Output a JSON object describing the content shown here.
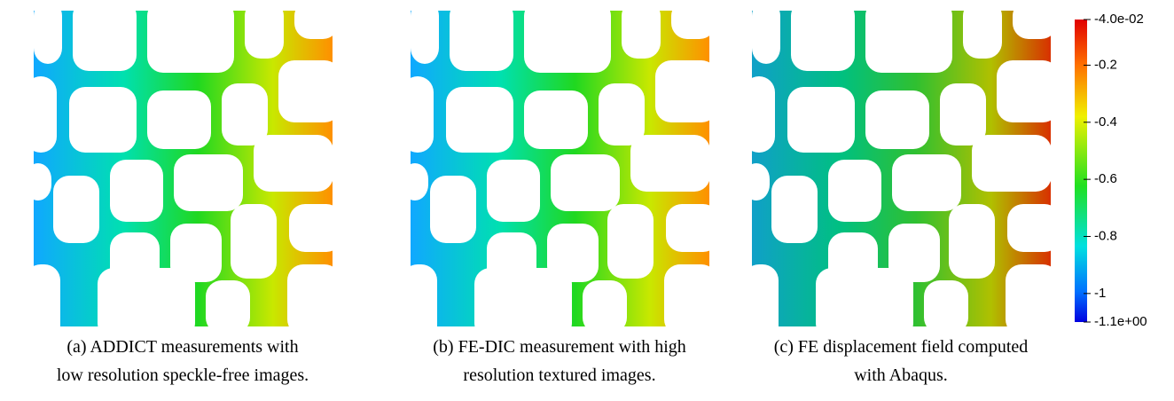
{
  "figures": [
    {
      "caption": [
        "(a) ADDICT measurements with",
        "low resolution speckle-free images."
      ]
    },
    {
      "caption": [
        "(b) FE-DIC measurement with high",
        "resolution textured images."
      ]
    },
    {
      "caption": [
        "(c) FE displacement field computed",
        "with Abaqus."
      ]
    }
  ],
  "colorbar": {
    "range": [
      -1.1,
      -0.04
    ],
    "ticks": [
      {
        "value": -0.04,
        "label": "-4.0e-02"
      },
      -0.2,
      -0.4,
      -0.6,
      -0.8,
      -1,
      {
        "value": -1.1,
        "label": "-1.1e+00"
      }
    ]
  }
}
